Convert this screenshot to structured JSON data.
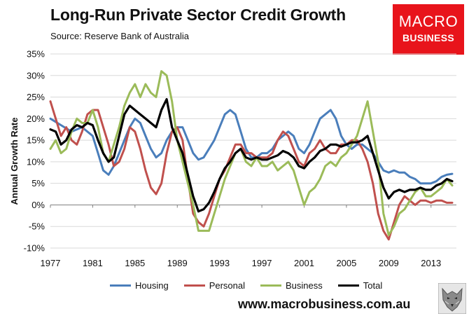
{
  "header": {
    "title": "Long-Run Private Sector Credit Growth",
    "subtitle": "Source: Reserve Bank of Australia"
  },
  "logo": {
    "line1": "MACRO",
    "line2": "BUSINESS",
    "color": "#e8141b"
  },
  "footer": {
    "url": "www.macrobusiness.com.au"
  },
  "chart_data": {
    "type": "line",
    "title": "Long-Run Private Sector Credit Growth",
    "subtitle": "Source: Reserve Bank of Australia",
    "xlabel": "",
    "ylabel": "Annual Growth Rate",
    "xlim": [
      1977,
      2015.4
    ],
    "ylim": [
      -10,
      35
    ],
    "y_ticks": [
      "-10%",
      "-5%",
      "0%",
      "5%",
      "10%",
      "15%",
      "20%",
      "25%",
      "30%",
      "35%"
    ],
    "x_ticks": [
      "1977",
      "1981",
      "1985",
      "1989",
      "1993",
      "1997",
      "2001",
      "2005",
      "2009",
      "2013"
    ],
    "grid": "horizontal",
    "legend_position": "bottom",
    "series": [
      {
        "name": "Housing",
        "color": "#4a7ebb",
        "points": [
          [
            1977,
            20
          ],
          [
            1978,
            18.5
          ],
          [
            1979,
            17
          ],
          [
            1980,
            18
          ],
          [
            1981,
            16
          ],
          [
            1981.5,
            12
          ],
          [
            1982,
            8
          ],
          [
            1982.5,
            7
          ],
          [
            1983,
            9
          ],
          [
            1983.5,
            12
          ],
          [
            1984,
            15
          ],
          [
            1984.5,
            18
          ],
          [
            1985,
            20
          ],
          [
            1985.5,
            19
          ],
          [
            1986,
            16
          ],
          [
            1986.5,
            13
          ],
          [
            1987,
            11
          ],
          [
            1987.5,
            12
          ],
          [
            1988,
            15
          ],
          [
            1988.5,
            17
          ],
          [
            1989,
            18
          ],
          [
            1989.5,
            18
          ],
          [
            1990,
            15
          ],
          [
            1990.5,
            12
          ],
          [
            1991,
            10.5
          ],
          [
            1991.5,
            11
          ],
          [
            1992,
            13
          ],
          [
            1992.5,
            15
          ],
          [
            1993,
            18
          ],
          [
            1993.5,
            21
          ],
          [
            1994,
            22
          ],
          [
            1994.5,
            21
          ],
          [
            1995,
            17
          ],
          [
            1995.5,
            13
          ],
          [
            1996,
            11
          ],
          [
            1996.5,
            11
          ],
          [
            1997,
            12
          ],
          [
            1997.5,
            12
          ],
          [
            1998,
            13
          ],
          [
            1998.5,
            15
          ],
          [
            1999,
            16
          ],
          [
            1999.5,
            17
          ],
          [
            2000,
            16
          ],
          [
            2000.5,
            13
          ],
          [
            2001,
            12
          ],
          [
            2001.5,
            14
          ],
          [
            2002,
            17
          ],
          [
            2002.5,
            20
          ],
          [
            2003,
            21
          ],
          [
            2003.5,
            22
          ],
          [
            2004,
            20
          ],
          [
            2004.5,
            16
          ],
          [
            2005,
            14
          ],
          [
            2005.5,
            13
          ],
          [
            2006,
            14
          ],
          [
            2006.5,
            14
          ],
          [
            2007,
            13
          ],
          [
            2007.5,
            12
          ],
          [
            2008,
            10
          ],
          [
            2008.5,
            8
          ],
          [
            2009,
            7.5
          ],
          [
            2009.5,
            8
          ],
          [
            2010,
            7.5
          ],
          [
            2010.5,
            7.5
          ],
          [
            2011,
            6.5
          ],
          [
            2011.5,
            6
          ],
          [
            2012,
            5
          ],
          [
            2012.5,
            5
          ],
          [
            2013,
            5
          ],
          [
            2013.5,
            5.5
          ],
          [
            2014,
            6.5
          ],
          [
            2014.5,
            7
          ],
          [
            2015,
            7.2
          ]
        ]
      },
      {
        "name": "Personal",
        "color": "#c0504d",
        "points": [
          [
            1977,
            24
          ],
          [
            1977.5,
            20
          ],
          [
            1978,
            16
          ],
          [
            1978.5,
            18
          ],
          [
            1979,
            15
          ],
          [
            1979.5,
            14
          ],
          [
            1980,
            17
          ],
          [
            1980.5,
            21
          ],
          [
            1981,
            22
          ],
          [
            1981.5,
            22
          ],
          [
            1982,
            18
          ],
          [
            1982.5,
            14
          ],
          [
            1983,
            9
          ],
          [
            1983.5,
            10
          ],
          [
            1984,
            13
          ],
          [
            1984.5,
            18
          ],
          [
            1985,
            17
          ],
          [
            1985.5,
            13
          ],
          [
            1986,
            8
          ],
          [
            1986.5,
            4
          ],
          [
            1987,
            2.5
          ],
          [
            1987.5,
            5
          ],
          [
            1988,
            12
          ],
          [
            1988.5,
            17
          ],
          [
            1989,
            18
          ],
          [
            1989.5,
            15
          ],
          [
            1990,
            6
          ],
          [
            1990.5,
            -2
          ],
          [
            1991,
            -4
          ],
          [
            1991.5,
            -5
          ],
          [
            1992,
            -2
          ],
          [
            1992.5,
            2
          ],
          [
            1993,
            6
          ],
          [
            1993.5,
            8
          ],
          [
            1994,
            11
          ],
          [
            1994.5,
            14
          ],
          [
            1995,
            14
          ],
          [
            1995.5,
            12
          ],
          [
            1996,
            12
          ],
          [
            1996.5,
            11
          ],
          [
            1997,
            11
          ],
          [
            1997.5,
            11
          ],
          [
            1998,
            12
          ],
          [
            1998.5,
            15
          ],
          [
            1999,
            17
          ],
          [
            1999.5,
            16
          ],
          [
            2000,
            13
          ],
          [
            2000.5,
            10
          ],
          [
            2001,
            9
          ],
          [
            2001.5,
            12
          ],
          [
            2002,
            13
          ],
          [
            2002.5,
            15
          ],
          [
            2003,
            13
          ],
          [
            2003.5,
            12
          ],
          [
            2004,
            12
          ],
          [
            2004.5,
            14
          ],
          [
            2005,
            14
          ],
          [
            2005.5,
            15
          ],
          [
            2006,
            15
          ],
          [
            2006.5,
            13
          ],
          [
            2007,
            10
          ],
          [
            2007.5,
            5
          ],
          [
            2008,
            -2
          ],
          [
            2008.5,
            -6
          ],
          [
            2009,
            -8
          ],
          [
            2009.5,
            -4
          ],
          [
            2010,
            0
          ],
          [
            2010.5,
            2
          ],
          [
            2011,
            1
          ],
          [
            2011.5,
            0
          ],
          [
            2012,
            1
          ],
          [
            2012.5,
            1
          ],
          [
            2013,
            0.5
          ],
          [
            2013.5,
            1
          ],
          [
            2014,
            1
          ],
          [
            2014.5,
            0.5
          ],
          [
            2015,
            0.5
          ]
        ]
      },
      {
        "name": "Business",
        "color": "#9bbb59",
        "points": [
          [
            1977,
            13
          ],
          [
            1977.5,
            15
          ],
          [
            1978,
            12
          ],
          [
            1978.5,
            13
          ],
          [
            1979,
            17
          ],
          [
            1979.5,
            20
          ],
          [
            1980,
            19
          ],
          [
            1980.5,
            19
          ],
          [
            1981,
            22
          ],
          [
            1981.5,
            18
          ],
          [
            1982,
            12
          ],
          [
            1982.5,
            10
          ],
          [
            1983,
            14
          ],
          [
            1983.5,
            18
          ],
          [
            1984,
            23
          ],
          [
            1984.5,
            26
          ],
          [
            1985,
            28
          ],
          [
            1985.5,
            25
          ],
          [
            1986,
            28
          ],
          [
            1986.5,
            26
          ],
          [
            1987,
            25
          ],
          [
            1987.5,
            31
          ],
          [
            1988,
            30
          ],
          [
            1988.5,
            24
          ],
          [
            1989,
            15
          ],
          [
            1989.5,
            10
          ],
          [
            1990,
            5
          ],
          [
            1990.5,
            0
          ],
          [
            1991,
            -6
          ],
          [
            1991.5,
            -6
          ],
          [
            1992,
            -6
          ],
          [
            1992.5,
            -2
          ],
          [
            1993,
            2
          ],
          [
            1993.5,
            6
          ],
          [
            1994,
            9
          ],
          [
            1994.5,
            12
          ],
          [
            1995,
            13
          ],
          [
            1995.5,
            10
          ],
          [
            1996,
            9
          ],
          [
            1996.5,
            11
          ],
          [
            1997,
            9
          ],
          [
            1997.5,
            9
          ],
          [
            1998,
            10
          ],
          [
            1998.5,
            8
          ],
          [
            1999,
            9
          ],
          [
            1999.5,
            10
          ],
          [
            2000,
            8
          ],
          [
            2000.5,
            4
          ],
          [
            2001,
            0
          ],
          [
            2001.5,
            3
          ],
          [
            2002,
            4
          ],
          [
            2002.5,
            6
          ],
          [
            2003,
            9
          ],
          [
            2003.5,
            10
          ],
          [
            2004,
            9
          ],
          [
            2004.5,
            11
          ],
          [
            2005,
            12
          ],
          [
            2005.5,
            14
          ],
          [
            2006,
            16
          ],
          [
            2006.5,
            20
          ],
          [
            2007,
            24
          ],
          [
            2007.5,
            17
          ],
          [
            2008,
            10
          ],
          [
            2008.5,
            -2
          ],
          [
            2009,
            -7
          ],
          [
            2009.5,
            -5
          ],
          [
            2010,
            -2
          ],
          [
            2010.5,
            -1
          ],
          [
            2011,
            1
          ],
          [
            2011.5,
            3
          ],
          [
            2012,
            4
          ],
          [
            2012.5,
            2
          ],
          [
            2013,
            2
          ],
          [
            2013.5,
            3
          ],
          [
            2014,
            4
          ],
          [
            2014.5,
            6
          ],
          [
            2015,
            4.5
          ]
        ]
      },
      {
        "name": "Total",
        "color": "#000000",
        "points": [
          [
            1977,
            17.5
          ],
          [
            1977.5,
            17
          ],
          [
            1978,
            14
          ],
          [
            1978.5,
            15
          ],
          [
            1979,
            17.5
          ],
          [
            1979.5,
            18.5
          ],
          [
            1980,
            18
          ],
          [
            1980.5,
            19
          ],
          [
            1981,
            18.5
          ],
          [
            1981.5,
            15
          ],
          [
            1982,
            12
          ],
          [
            1982.5,
            10
          ],
          [
            1983,
            11
          ],
          [
            1983.5,
            16
          ],
          [
            1984,
            21
          ],
          [
            1984.5,
            23
          ],
          [
            1985,
            22
          ],
          [
            1985.5,
            21
          ],
          [
            1986,
            20
          ],
          [
            1986.5,
            19
          ],
          [
            1987,
            18
          ],
          [
            1987.5,
            22
          ],
          [
            1988,
            24.5
          ],
          [
            1988.5,
            18
          ],
          [
            1989,
            15
          ],
          [
            1989.5,
            12
          ],
          [
            1990,
            7
          ],
          [
            1990.5,
            2
          ],
          [
            1991,
            -1.5
          ],
          [
            1991.5,
            -1
          ],
          [
            1992,
            0.5
          ],
          [
            1992.5,
            3
          ],
          [
            1993,
            6
          ],
          [
            1993.5,
            8.5
          ],
          [
            1994,
            10
          ],
          [
            1994.5,
            12
          ],
          [
            1995,
            13
          ],
          [
            1995.5,
            11
          ],
          [
            1996,
            10.5
          ],
          [
            1996.5,
            11
          ],
          [
            1997,
            10.5
          ],
          [
            1997.5,
            10.5
          ],
          [
            1998,
            11
          ],
          [
            1998.5,
            11.5
          ],
          [
            1999,
            12.5
          ],
          [
            1999.5,
            12
          ],
          [
            2000,
            11
          ],
          [
            2000.5,
            9
          ],
          [
            2001,
            8.5
          ],
          [
            2001.5,
            10
          ],
          [
            2002,
            11
          ],
          [
            2002.5,
            12.5
          ],
          [
            2003,
            13
          ],
          [
            2003.5,
            14
          ],
          [
            2004,
            14
          ],
          [
            2004.5,
            13.5
          ],
          [
            2005,
            14
          ],
          [
            2005.5,
            14.5
          ],
          [
            2006,
            14.5
          ],
          [
            2006.5,
            15
          ],
          [
            2007,
            16
          ],
          [
            2007.5,
            12
          ],
          [
            2008,
            8
          ],
          [
            2008.5,
            4
          ],
          [
            2009,
            1.5
          ],
          [
            2009.5,
            3
          ],
          [
            2010,
            3.5
          ],
          [
            2010.5,
            3
          ],
          [
            2011,
            3.5
          ],
          [
            2011.5,
            3.5
          ],
          [
            2012,
            4
          ],
          [
            2012.5,
            3.5
          ],
          [
            2013,
            3.5
          ],
          [
            2013.5,
            4.5
          ],
          [
            2014,
            5
          ],
          [
            2014.5,
            6
          ],
          [
            2015,
            5.5
          ]
        ]
      }
    ]
  }
}
